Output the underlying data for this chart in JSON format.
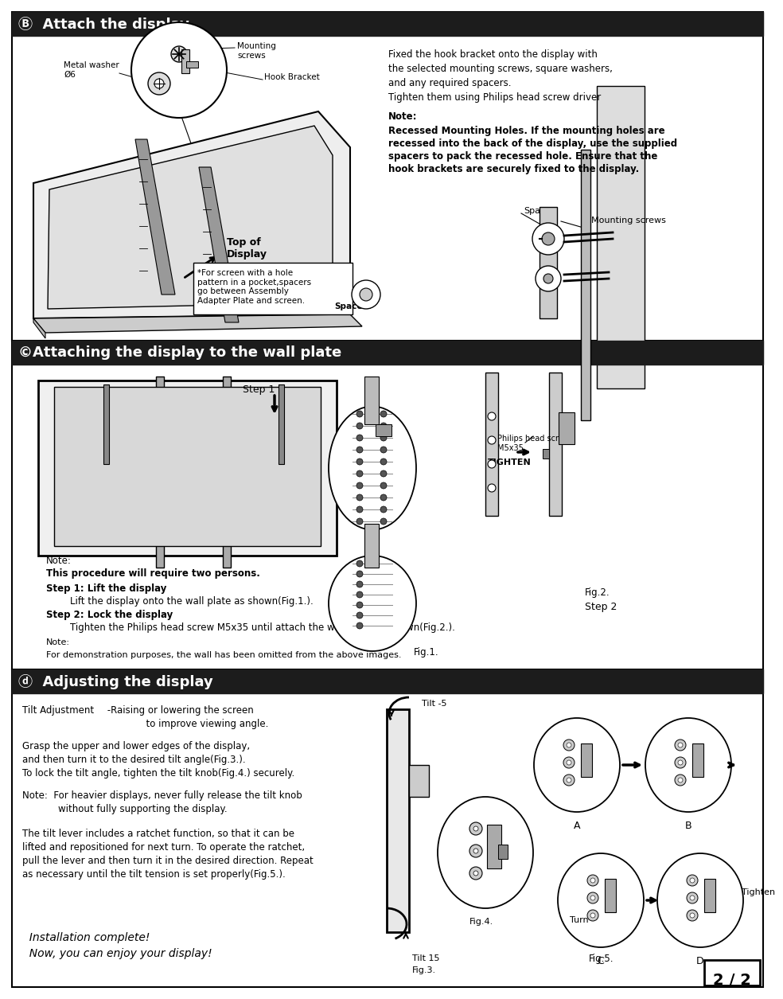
{
  "page_bg": "#ffffff",
  "border_color": "#000000",
  "header_bg": "#1c1c1c",
  "header_text_color": "#ffffff",
  "section_b": {
    "header": "Ⓑ  Attach the display",
    "right_text_line1": "Fixed the hook bracket onto the display with",
    "right_text_line2": "the selected mounting screws, square washers,",
    "right_text_line3": "and any required spacers.",
    "right_text_line4": "Tighten them using Philips head screw driver",
    "note_label": "Note:",
    "note_bold1": "Recessed Mounting Holes. If the mounting holes are",
    "note_bold2": "recessed into the back of the display, use the supplied",
    "note_bold3": "spacers to pack the recessed hole. Ensure that the",
    "note_bold4": "hook brackets are securely fixed to the display.",
    "callout_screws": "Mounting\nscrews",
    "callout_hook": "Hook Bracket",
    "callout_washer": "Metal washer\nØ6",
    "top_display": "Top of\nDisplay",
    "pocket_text": "*For screen with a hole\npattern in a pocket,spacers\ngo between Assembly\nAdapter Plate and screen.",
    "pocket_bold": "Spacers",
    "spacer_label": "Spacer",
    "mount_screw_label": "Mounting screws"
  },
  "section_c": {
    "header": "©Attaching the display to the wall plate",
    "step1_label": "Step 1",
    "fig1_label": "Fig.1.",
    "fig2_label": "Fig.2.",
    "step2_label": "Step 2",
    "tighten_label": "TIGHTEN",
    "philips_label": "Philips head screw\nM5x35",
    "note1": "Note:",
    "note1b": "This procedure will require two persons.",
    "step1_title": "Step 1: Lift the display",
    "step1_detail": "        Lift the display onto the wall plate as shown(Fig.1.).",
    "step2_title": "Step 2: Lock the display",
    "step2_detail": "        Tighten the Philips head screw M5x35 until attach the wall plate as shown(Fig.2.).",
    "note2": "Note:",
    "note2b": "For demonstration purposes, the wall has been omitted from the above images."
  },
  "section_d": {
    "header": "ⓓ  Adjusting the display",
    "tilt_adj": "Tilt Adjustment",
    "tilt_adj2": " -Raising or lowering the screen",
    "tilt_adj3": "              to improve viewing angle.",
    "para1a": "Grasp the upper and lower edges of the display,",
    "para1b": "and then turn it to the desired tilt angle(Fig.3.).",
    "para1c": "To lock the tilt angle, tighten the tilt knob(Fig.4.) securely.",
    "note_heavier1": "Note:  For heavier displays, never fully release the tilt knob",
    "note_heavier2": "            without fully supporting the display.",
    "para2a": "The tilt lever includes a ratchet function, so that it can be",
    "para2b": "lifted and repositioned for next turn. To operate the ratchet,",
    "para2c": "pull the lever and then turn it in the desired direction. Repeat",
    "para2d": "as necessary until the tilt tension is set properly(Fig.5.).",
    "install1": "  Installation complete!",
    "install2": "  Now, you can enjoy your display!",
    "tilt_minus": "Tilt -5",
    "tilt_plus": "Tilt 15",
    "fig3": "Fig.3.",
    "fig4": "Fig.4.",
    "fig5": "Fig.5.",
    "label_A": "A",
    "label_B": "B",
    "label_C": "C",
    "label_D": "D",
    "turn_label": "Turn",
    "tighten_label2": "Tighten"
  },
  "page_num": "2 / 2"
}
